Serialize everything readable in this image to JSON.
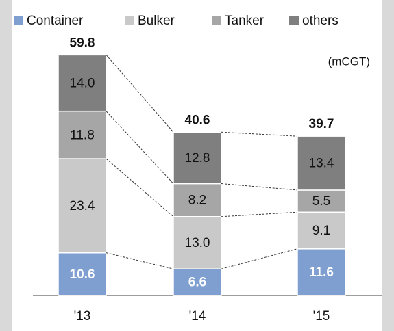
{
  "chart_data": {
    "type": "stacked_bar",
    "unit": "(mCGT)",
    "categories": [
      "'13",
      "'14",
      "'15"
    ],
    "totals": [
      59.8,
      40.6,
      39.7
    ],
    "series": [
      {
        "name": "Container",
        "color": "#7f9fd0",
        "values": [
          10.6,
          6.6,
          11.6
        ]
      },
      {
        "name": "Bulker",
        "color": "#c9c9c9",
        "values": [
          23.4,
          13.0,
          9.1
        ],
        "value_labels": [
          "23.4",
          "13.0",
          "9.1"
        ]
      },
      {
        "name": "Tanker",
        "color": "#a6a6a6",
        "values": [
          11.8,
          8.2,
          5.5
        ]
      },
      {
        "name": "others",
        "color": "#7f7f7f",
        "values": [
          14.0,
          12.8,
          13.4
        ],
        "value_labels": [
          "14.0",
          "12.8",
          "13.4"
        ]
      }
    ]
  }
}
